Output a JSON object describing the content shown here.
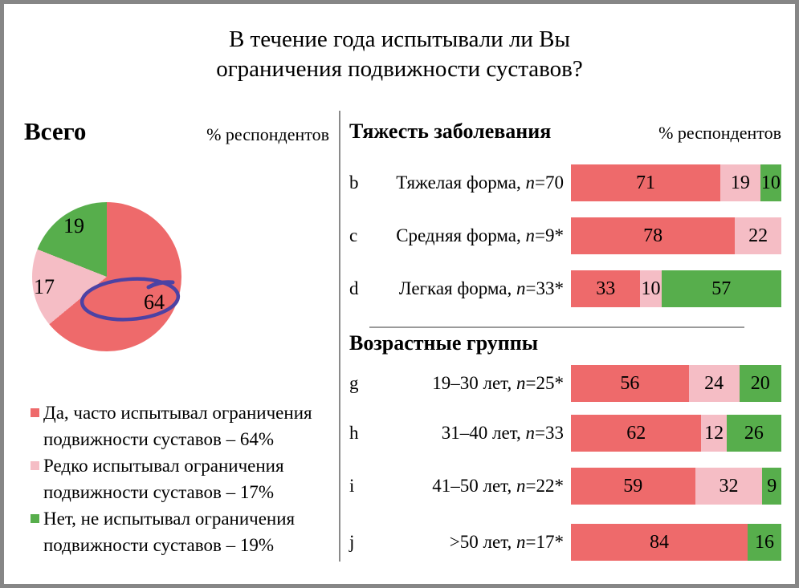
{
  "title": {
    "line1": "В течение года испытывали ли Вы",
    "line2": "ограничения подвижности суставов?"
  },
  "colors": {
    "red": "#ee6a6b",
    "pink": "#f5bdc5",
    "green": "#57ae4c",
    "annotation": "#4c42a4",
    "divider": "#8a8a8a",
    "frame_border": "#868686"
  },
  "left_panel": {
    "header": "Всего",
    "unit_label": "% респондентов",
    "pie_labels": {
      "red": "64",
      "pink": "17",
      "green": "19"
    },
    "legend": [
      {
        "color": "red",
        "lines": [
          "Да, часто испытывал ограничения",
          "подвижности суставов – 64%"
        ]
      },
      {
        "color": "pink",
        "lines": [
          "Редко испытывал ограничения",
          "подвижности суставов – 17%"
        ]
      },
      {
        "color": "green",
        "lines": [
          "Нет, не испытывал ограничения",
          "подвижности суставов – 19%"
        ]
      }
    ]
  },
  "right_panel": {
    "sections": [
      {
        "header": "Тяжесть заболевания",
        "unit_label": "% респондентов",
        "rows": [
          {
            "letter": "b",
            "label": "Тяжелая форма,",
            "n_italic": "n",
            "n_suffix": "=70",
            "segments": [
              {
                "color": "red",
                "value": "71"
              },
              {
                "color": "pink",
                "value": "19"
              },
              {
                "color": "green",
                "value": "10"
              }
            ]
          },
          {
            "letter": "c",
            "label": "Средняя форма,",
            "n_italic": "n",
            "n_suffix": "=9*",
            "segments": [
              {
                "color": "red",
                "value": "78"
              },
              {
                "color": "pink",
                "value": "22"
              }
            ]
          },
          {
            "letter": "d",
            "label": "Легкая форма,",
            "n_italic": "n",
            "n_suffix": "=33*",
            "segments": [
              {
                "color": "red",
                "value": "33"
              },
              {
                "color": "pink",
                "value": "10"
              },
              {
                "color": "green",
                "value": "57"
              }
            ]
          }
        ]
      },
      {
        "header": "Возрастные группы",
        "rows": [
          {
            "letter": "g",
            "label": "19–30 лет,",
            "n_italic": "n",
            "n_suffix": "=25*",
            "segments": [
              {
                "color": "red",
                "value": "56"
              },
              {
                "color": "pink",
                "value": "24"
              },
              {
                "color": "green",
                "value": "20"
              }
            ]
          },
          {
            "letter": "h",
            "label": "31–40 лет,",
            "n_italic": "n",
            "n_suffix": "=33",
            "segments": [
              {
                "color": "red",
                "value": "62"
              },
              {
                "color": "pink",
                "value": "12"
              },
              {
                "color": "green",
                "value": "26"
              }
            ]
          },
          {
            "letter": "i",
            "label": "41–50 лет,",
            "n_italic": "n",
            "n_suffix": "=22*",
            "segments": [
              {
                "color": "red",
                "value": "59"
              },
              {
                "color": "pink",
                "value": "32"
              },
              {
                "color": "green",
                "value": "9"
              }
            ]
          },
          {
            "letter": "j",
            "label": ">50 лет,",
            "n_italic": "n",
            "n_suffix": "=17*",
            "segments": [
              {
                "color": "red",
                "value": "84"
              },
              {
                "color": "green",
                "value": "16"
              }
            ]
          }
        ]
      }
    ]
  },
  "chart_data": [
    {
      "type": "pie",
      "title": "Всего",
      "units": "% респондентов",
      "labels": [
        "Да, часто испытывал ограничения подвижности суставов",
        "Редко испытывал ограничения подвижности суставов",
        "Нет, не испытывал ограничения подвижности суставов"
      ],
      "values": [
        64,
        17,
        19
      ],
      "colors": [
        "#ee6a6b",
        "#f5bdc5",
        "#57ae4c"
      ],
      "start_angle_deg": 0,
      "direction": "clockwise",
      "annotation": "рукописный овал цвета #4c42a4 вокруг значения 64"
    },
    {
      "type": "bar",
      "orientation": "horizontal",
      "stacked": true,
      "title": "Тяжесть заболевания",
      "units": "% респондентов",
      "xlim": [
        0,
        100
      ],
      "row_letters": [
        "b",
        "c",
        "d"
      ],
      "categories": [
        "Тяжелая форма, n=70",
        "Средняя форма, n=9*",
        "Легкая форма, n=33*"
      ],
      "series": [
        {
          "name": "Да, часто испытывал ограничения подвижности суставов",
          "color": "#ee6a6b",
          "values": [
            71,
            78,
            33
          ]
        },
        {
          "name": "Редко испытывал ограничения подвижности суставов",
          "color": "#f5bdc5",
          "values": [
            19,
            22,
            10
          ]
        },
        {
          "name": "Нет, не испытывал ограничения подвижности суставов",
          "color": "#57ae4c",
          "values": [
            10,
            0,
            57
          ]
        }
      ]
    },
    {
      "type": "bar",
      "orientation": "horizontal",
      "stacked": true,
      "title": "Возрастные группы",
      "units": "% респондентов",
      "xlim": [
        0,
        100
      ],
      "row_letters": [
        "g",
        "h",
        "i",
        "j"
      ],
      "categories": [
        "19–30 лет, n=25*",
        "31–40 лет, n=33",
        "41–50 лет, n=22*",
        ">50 лет, n=17*"
      ],
      "series": [
        {
          "name": "Да, часто испытывал ограничения подвижности суставов",
          "color": "#ee6a6b",
          "values": [
            56,
            62,
            59,
            84
          ]
        },
        {
          "name": "Редко испытывал ограничения подвижности суставов",
          "color": "#f5bdc5",
          "values": [
            24,
            12,
            32,
            0
          ]
        },
        {
          "name": "Нет, не испытывал ограничения подвижности суставов",
          "color": "#57ae4c",
          "values": [
            20,
            26,
            9,
            16
          ]
        }
      ]
    }
  ]
}
